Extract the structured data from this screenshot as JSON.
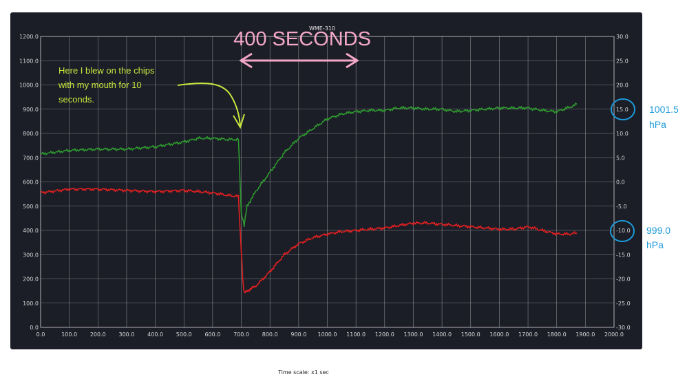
{
  "chart_data": {
    "type": "line",
    "title": "WME-310",
    "xlabel": "Time scale: x1 sec",
    "xlim": [
      0,
      2000
    ],
    "ylim_left": [
      0,
      1200
    ],
    "ylim_right": [
      -30,
      30
    ],
    "grid": true,
    "x_ticks": [
      "0.0",
      "100.0",
      "200.0",
      "300.0",
      "400.0",
      "500.0",
      "600.0",
      "700.0",
      "800.0",
      "900.0",
      "1000.0",
      "1100.0",
      "1200.0",
      "1300.0",
      "1400.0",
      "1500.0",
      "1600.0",
      "1700.0",
      "1800.0",
      "1900.0",
      "2000.0"
    ],
    "y_left_ticks": [
      "0.0",
      "100.0",
      "200.0",
      "300.0",
      "400.0",
      "500.0",
      "600.0",
      "700.0",
      "800.0",
      "900.0",
      "1000.0",
      "1100.0",
      "1200.0"
    ],
    "y_right_ticks": [
      "-30.0",
      "-25.0",
      "-20.0",
      "-15.0",
      "-10.0",
      "-5.0",
      "0.0",
      "5.0",
      "10.0",
      "15.0",
      "20.0",
      "25.0",
      "30.0"
    ],
    "series": [
      {
        "color": "#2e9a2e",
        "x": [
          0,
          100,
          200,
          300,
          400,
          500,
          550,
          600,
          650,
          690,
          695,
          700,
          705,
          710,
          720,
          750,
          800,
          850,
          900,
          950,
          1000,
          1050,
          1100,
          1150,
          1200,
          1250,
          1300,
          1350,
          1400,
          1450,
          1500,
          1550,
          1600,
          1650,
          1700,
          1750,
          1800,
          1850,
          1870
        ],
        "y": [
          715,
          730,
          735,
          735,
          745,
          765,
          780,
          780,
          775,
          775,
          620,
          470,
          450,
          420,
          500,
          560,
          640,
          720,
          780,
          820,
          860,
          880,
          890,
          895,
          895,
          905,
          905,
          900,
          900,
          890,
          895,
          900,
          905,
          905,
          905,
          895,
          890,
          910,
          920
        ]
      },
      {
        "color": "#e02020",
        "x": [
          0,
          100,
          200,
          300,
          400,
          500,
          550,
          600,
          650,
          690,
          695,
          700,
          705,
          710,
          720,
          750,
          800,
          850,
          900,
          950,
          1000,
          1050,
          1100,
          1150,
          1200,
          1250,
          1300,
          1350,
          1400,
          1450,
          1500,
          1550,
          1600,
          1650,
          1700,
          1750,
          1800,
          1850,
          1870
        ],
        "y": [
          555,
          570,
          570,
          565,
          560,
          565,
          560,
          555,
          545,
          540,
          420,
          320,
          200,
          140,
          150,
          170,
          230,
          300,
          345,
          370,
          385,
          395,
          400,
          405,
          410,
          420,
          430,
          430,
          425,
          420,
          415,
          410,
          405,
          405,
          415,
          400,
          385,
          385,
          390
        ]
      }
    ],
    "annotations": {
      "blow_note": [
        "Here I blew on the chips",
        "with my mouth for 10",
        "seconds."
      ],
      "span_label": "400 SECONDS",
      "pressure_high": [
        "1001.5",
        "hPa"
      ],
      "pressure_low": [
        "999.0",
        "hPa"
      ]
    },
    "colors": {
      "annotation_green": "#c8e63c",
      "annotation_pink": "#f3a8c8",
      "annotation_blue": "#1e9ad8"
    }
  }
}
